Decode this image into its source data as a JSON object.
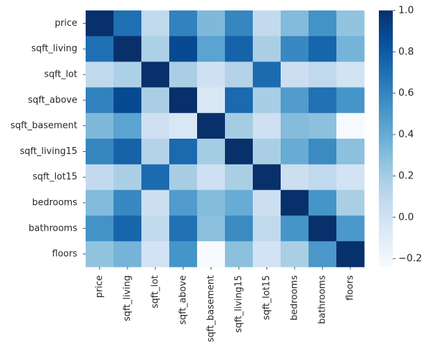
{
  "chart_data": {
    "type": "heatmap",
    "title": "",
    "xlabel": "",
    "ylabel": "",
    "colormap": "Blues",
    "color_range": [
      -0.24,
      1.0
    ],
    "colorbar_ticks": [
      1.0,
      0.8,
      0.6,
      0.4,
      0.2,
      0.0,
      -0.2
    ],
    "colorbar_tick_labels": [
      "1.0",
      "0.8",
      "0.6",
      "0.4",
      "0.2",
      "0.0",
      "−0.2"
    ],
    "x_labels": [
      "price",
      "sqft_living",
      "sqft_lot",
      "sqft_above",
      "sqft_basement",
      "sqft_living15",
      "sqft_lot15",
      "bedrooms",
      "bathrooms",
      "floors"
    ],
    "y_labels": [
      "price",
      "sqft_living",
      "sqft_lot",
      "sqft_above",
      "sqft_basement",
      "sqft_living15",
      "sqft_lot15",
      "bedrooms",
      "bathrooms",
      "floors"
    ],
    "matrix": [
      [
        1.0,
        0.7,
        0.09,
        0.61,
        0.32,
        0.59,
        0.08,
        0.31,
        0.53,
        0.26
      ],
      [
        0.7,
        1.0,
        0.17,
        0.88,
        0.44,
        0.76,
        0.18,
        0.58,
        0.75,
        0.35
      ],
      [
        0.09,
        0.17,
        1.0,
        0.18,
        0.02,
        0.14,
        0.72,
        0.03,
        0.09,
        -0.01
      ],
      [
        0.61,
        0.88,
        0.18,
        1.0,
        -0.05,
        0.73,
        0.19,
        0.48,
        0.69,
        0.52
      ],
      [
        0.32,
        0.44,
        0.02,
        -0.05,
        1.0,
        0.2,
        0.02,
        0.3,
        0.28,
        -0.24
      ],
      [
        0.59,
        0.76,
        0.14,
        0.73,
        0.2,
        1.0,
        0.18,
        0.39,
        0.57,
        0.28
      ],
      [
        0.08,
        0.18,
        0.72,
        0.19,
        0.02,
        0.18,
        1.0,
        0.03,
        0.09,
        -0.01
      ],
      [
        0.31,
        0.58,
        0.03,
        0.48,
        0.3,
        0.39,
        0.03,
        1.0,
        0.52,
        0.18
      ],
      [
        0.53,
        0.75,
        0.09,
        0.69,
        0.28,
        0.57,
        0.09,
        0.52,
        1.0,
        0.5
      ],
      [
        0.26,
        0.35,
        -0.01,
        0.52,
        -0.24,
        0.28,
        -0.01,
        0.18,
        0.5,
        1.0
      ]
    ]
  }
}
